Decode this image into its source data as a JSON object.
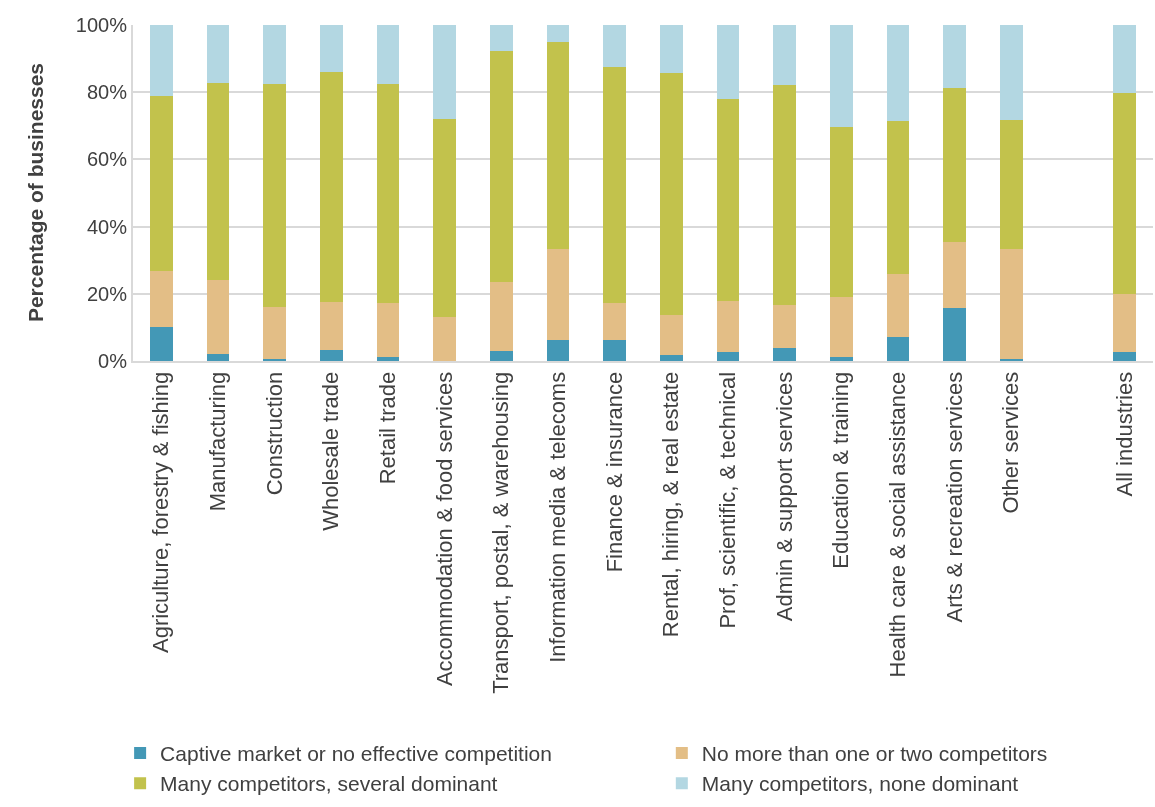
{
  "chart_data": {
    "type": "bar",
    "stacked": true,
    "ylabel": "Percentage of businesses",
    "categories": [
      "Agriculture, forestry & fishing",
      "Manufacturing",
      "Construction",
      "Wholesale trade",
      "Retail trade",
      "Accommodation & food services",
      "Transport, postal, & warehousing",
      "Information media & telecoms",
      "Finance & insurance",
      "Rental, hiring, & real estate",
      "Prof, scientific, & technical",
      "Admin & support services",
      "Education & training",
      "Health care & social assistance",
      "Arts & recreation services",
      "Other services",
      null,
      "All industries"
    ],
    "series": [
      {
        "name": "Captive market or no effective competition",
        "color": "#4398b6",
        "values": [
          10.2,
          2.2,
          0.5,
          3.4,
          1.1,
          0,
          3.0,
          6.2,
          6.4,
          1.8,
          2.7,
          4.0,
          1.1,
          7.0,
          15.9,
          0.5,
          null,
          2.7
        ]
      },
      {
        "name": "No more than one or two competitors",
        "color": "#e3be86",
        "values": [
          16.7,
          21.9,
          15.6,
          14.2,
          16.3,
          13.2,
          20.6,
          27.2,
          11.0,
          11.8,
          15.2,
          12.6,
          18.0,
          18.9,
          19.4,
          32.8,
          null,
          17.1
        ]
      },
      {
        "name": "Many competitors, several dominant",
        "color": "#c2c24c",
        "values": [
          52.0,
          58.7,
          66.3,
          68.4,
          64.9,
          58.7,
          68.7,
          61.4,
          70.2,
          72.2,
          60.1,
          65.5,
          50.5,
          45.5,
          45.9,
          38.3,
          null,
          60.0
        ]
      },
      {
        "name": "Many competitors, none dominant",
        "color": "#b3d7e2",
        "values": [
          21.1,
          17.2,
          17.6,
          14.0,
          17.7,
          28.1,
          7.7,
          5.2,
          12.4,
          14.2,
          22.0,
          17.9,
          30.4,
          28.6,
          18.8,
          28.4,
          null,
          20.2
        ]
      }
    ],
    "ylim": [
      0,
      100
    ],
    "yticks": [
      {
        "value": 0,
        "label": "0%"
      },
      {
        "value": 20,
        "label": "20%"
      },
      {
        "value": 40,
        "label": "40%"
      },
      {
        "value": 60,
        "label": "60%"
      },
      {
        "value": 80,
        "label": "80%"
      },
      {
        "value": 100,
        "label": "100%"
      }
    ],
    "grid": "y",
    "legend": "bottom"
  }
}
